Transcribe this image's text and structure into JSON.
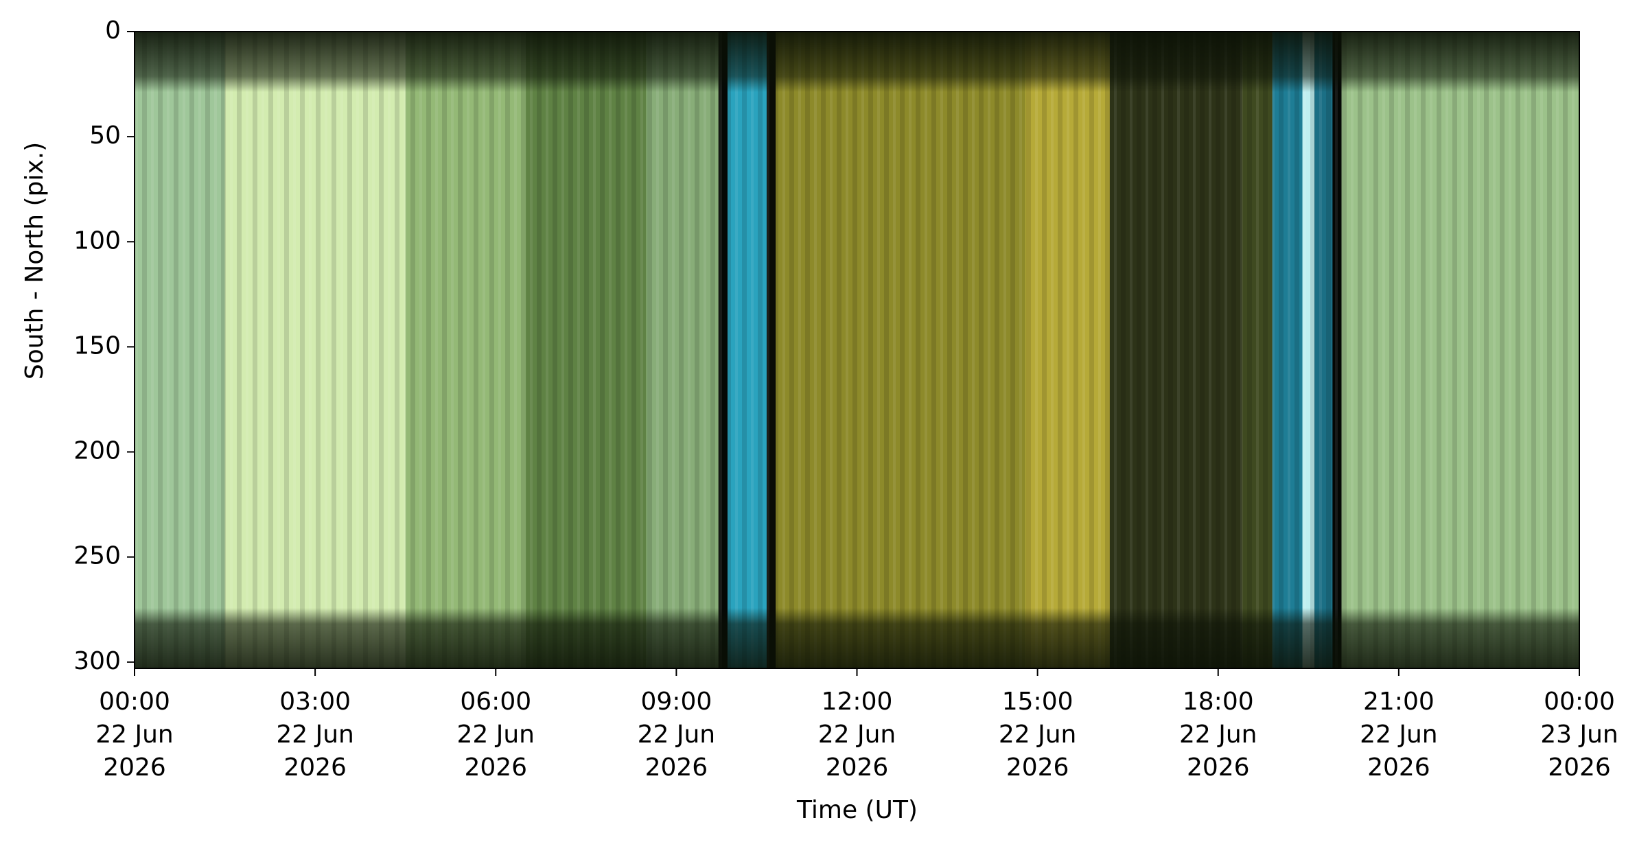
{
  "chart_data": {
    "type": "image",
    "xlabel": "Time (UT)",
    "ylabel": "South - North (pix.)",
    "xlim": [
      "2026-06-22T00:00",
      "2026-06-23T00:00"
    ],
    "xticks": [
      {
        "value": "2026-06-22T00:00",
        "label": "00:00\n22 Jun\n2026"
      },
      {
        "value": "2026-06-22T03:00",
        "label": "03:00\n22 Jun\n2026"
      },
      {
        "value": "2026-06-22T06:00",
        "label": "06:00\n22 Jun\n2026"
      },
      {
        "value": "2026-06-22T09:00",
        "label": "09:00\n22 Jun\n2026"
      },
      {
        "value": "2026-06-22T12:00",
        "label": "12:00\n22 Jun\n2026"
      },
      {
        "value": "2026-06-22T15:00",
        "label": "15:00\n22 Jun\n2026"
      },
      {
        "value": "2026-06-22T18:00",
        "label": "18:00\n22 Jun\n2026"
      },
      {
        "value": "2026-06-22T21:00",
        "label": "21:00\n22 Jun\n2026"
      },
      {
        "value": "2026-06-23T00:00",
        "label": "00:00\n23 Jun\n2026"
      }
    ],
    "ylim": [
      303,
      0
    ],
    "yticks": [
      0,
      50,
      100,
      150,
      200,
      250,
      300
    ],
    "strips": [
      {
        "start": "2026-06-22T00:00",
        "end": "2026-06-22T01:30",
        "color": "#9fc79a"
      },
      {
        "start": "2026-06-22T01:30",
        "end": "2026-06-22T04:30",
        "color": "#d3ecb0"
      },
      {
        "start": "2026-06-22T04:30",
        "end": "2026-06-22T06:30",
        "color": "#94b976"
      },
      {
        "start": "2026-06-22T06:30",
        "end": "2026-06-22T08:30",
        "color": "#5f8244"
      },
      {
        "start": "2026-06-22T08:30",
        "end": "2026-06-22T09:42",
        "color": "#88ad78"
      },
      {
        "start": "2026-06-22T09:42",
        "end": "2026-06-22T09:51",
        "color": "#050805"
      },
      {
        "start": "2026-06-22T09:51",
        "end": "2026-06-22T10:30",
        "color": "#2aa3be"
      },
      {
        "start": "2026-06-22T10:30",
        "end": "2026-06-22T10:39",
        "color": "#0a0c06"
      },
      {
        "start": "2026-06-22T10:39",
        "end": "2026-06-22T14:48",
        "color": "#8d8a2a"
      },
      {
        "start": "2026-06-22T14:48",
        "end": "2026-06-22T16:12",
        "color": "#b6aa38"
      },
      {
        "start": "2026-06-22T16:12",
        "end": "2026-06-22T18:24",
        "color": "#2d3318"
      },
      {
        "start": "2026-06-22T18:24",
        "end": "2026-06-22T18:54",
        "color": "#3f4a20"
      },
      {
        "start": "2026-06-22T18:54",
        "end": "2026-06-22T19:24",
        "color": "#1e7d95"
      },
      {
        "start": "2026-06-22T19:24",
        "end": "2026-06-22T19:36",
        "color": "#bfeff0"
      },
      {
        "start": "2026-06-22T19:36",
        "end": "2026-06-22T19:54",
        "color": "#1b6f85"
      },
      {
        "start": "2026-06-22T19:54",
        "end": "2026-06-22T20:03",
        "color": "#050805"
      },
      {
        "start": "2026-06-22T20:03",
        "end": "2026-06-23T00:00",
        "color": "#9cc28a"
      }
    ]
  }
}
